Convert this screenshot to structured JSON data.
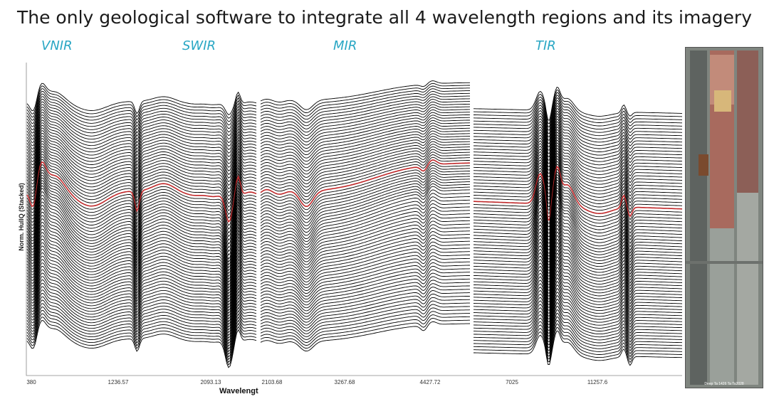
{
  "headline": "The only geological software to integrate all 4 wavelength regions and its imagery",
  "chart_data": {
    "type": "line",
    "title": "",
    "xlabel": "Wavelengt",
    "ylabel": "Norm. HullQ (Stacked)",
    "regions": [
      "VNIR",
      "SWIR",
      "MIR",
      "TIR"
    ],
    "x_tick_labels": [
      "380",
      "1236.57",
      "2093.13",
      "2103.68",
      "3267.68",
      "4427.72",
      "7025",
      "11257.6"
    ],
    "series_count": 80,
    "highlight_series_color": "#c0282a",
    "line_color": "#000000",
    "grid": false
  },
  "core_image": {
    "caption": "Deep Ta 1426 Ta Ta2028"
  },
  "colors": {
    "region_label": "#2aa7c4",
    "headline": "#1a1a1a"
  }
}
